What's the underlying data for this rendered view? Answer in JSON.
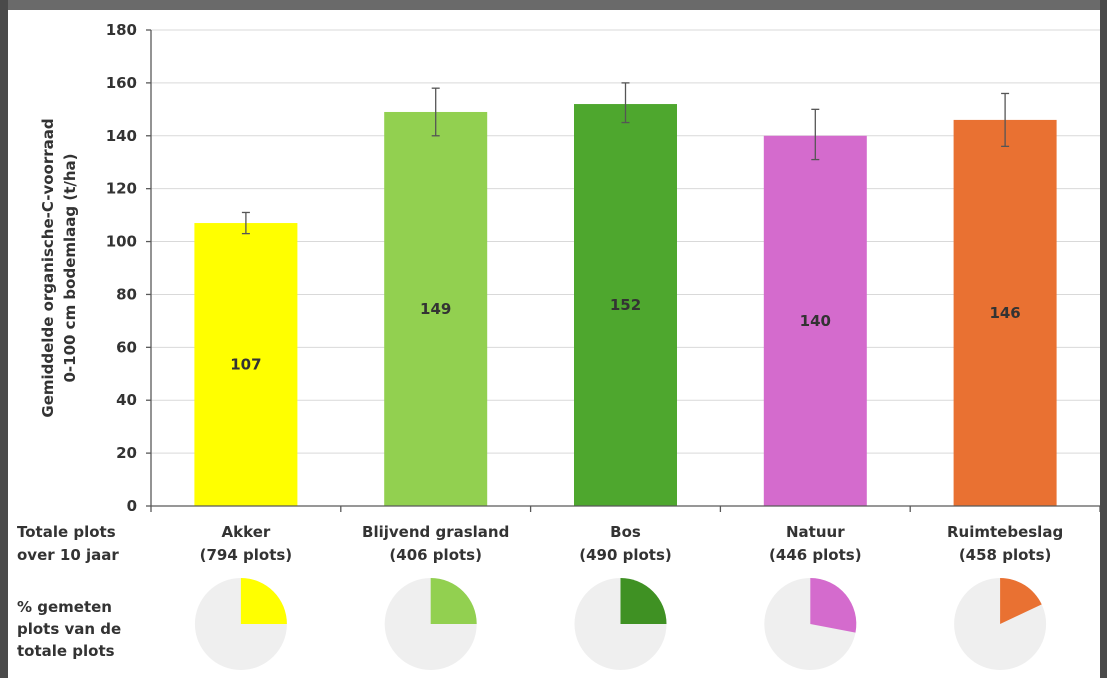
{
  "chart_data": {
    "type": "bar",
    "ylabel": [
      "Gemiddelde organische-C-voorraad",
      "0-100 cm bodemlaag (t/ha)"
    ],
    "ylim": [
      0,
      180
    ],
    "yticks": [
      0,
      20,
      40,
      60,
      80,
      100,
      120,
      140,
      160,
      180
    ],
    "grid": true,
    "categories": [
      {
        "name": "Akker",
        "plots": "(794 plots)",
        "value": 107,
        "err_low": 103,
        "err_high": 111,
        "color": "#FFFF00",
        "pie_fraction": 0.25
      },
      {
        "name": "Blijvend grasland",
        "plots": "(406 plots)",
        "value": 149,
        "err_low": 140,
        "err_high": 158,
        "color": "#92D050",
        "pie_fraction": 0.25
      },
      {
        "name": "Bos",
        "plots": "(490 plots)",
        "value": 152,
        "err_low": 145,
        "err_high": 160,
        "color": "#4EA72E",
        "pie_fraction": 0.25
      },
      {
        "name": "Natuur",
        "plots": "(446 plots)",
        "value": 140,
        "err_low": 131,
        "err_high": 150,
        "color": "#D46BCD",
        "pie_fraction": 0.28
      },
      {
        "name": "Ruimtebeslag",
        "plots": "(458 plots)",
        "value": 146,
        "err_low": 136,
        "err_high": 156,
        "color": "#E97132",
        "pie_fraction": 0.18
      }
    ],
    "row_labels": {
      "totals": [
        "Totale plots",
        "over 10 jaar"
      ],
      "percent": [
        "% gemeten",
        "plots van de",
        "totale plots"
      ]
    },
    "pie_background_color": "#EFEFEF"
  }
}
